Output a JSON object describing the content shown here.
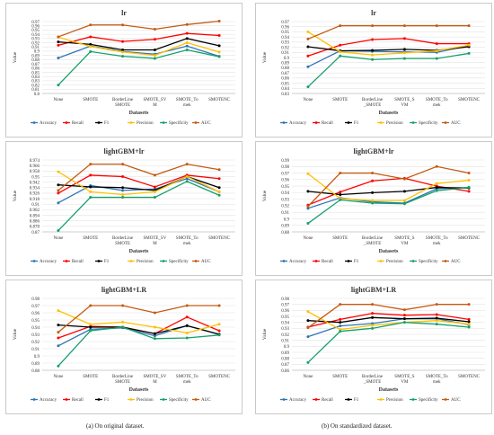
{
  "series_colors": {
    "Accuracy": "#2e75b6",
    "Recall": "#ff0000",
    "F1": "#000000",
    "Precision": "#ffc000",
    "Specificity": "#16a06a",
    "AUC": "#c55a11"
  },
  "captions": {
    "left": "(a)  On original dataset.",
    "right": "(b)  On standardized dataset."
  },
  "chart_data": [
    {
      "type": "line",
      "title": "lr",
      "xlabel": "Datasets",
      "ylabel": "Value",
      "ylim": [
        0.8,
        0.97
      ],
      "yticks": [
        "0.8",
        "0.81",
        "0.82",
        "0.83",
        "0.84",
        "0.85",
        "0.86",
        "0.87",
        "0.88",
        "0.89",
        "0.9",
        "0.91",
        "0.92",
        "0.93",
        "0.94",
        "0.95",
        "0.96",
        "0.97"
      ],
      "categories": [
        "None",
        "SMOTE",
        "BorderLine_SMOTE",
        "SMOTE_SVM",
        "SMOTE_Tomek",
        "SMOTENC"
      ],
      "category_labels": [
        [
          "None"
        ],
        [
          "SMOTE"
        ],
        [
          "BorderLine",
          "SMOTE"
        ],
        [
          "SMOTE_SV",
          "M"
        ],
        [
          "SMOTE_To",
          "mek"
        ],
        [
          "SMOTENC"
        ]
      ],
      "legend": "bottom",
      "grid": true,
      "series": [
        {
          "name": "Accuracy",
          "values": [
            0.884,
            0.912,
            0.899,
            0.893,
            0.912,
            0.888
          ]
        },
        {
          "name": "Recall",
          "values": [
            0.914,
            0.934,
            0.923,
            0.928,
            0.942,
            0.937
          ]
        },
        {
          "name": "F1",
          "values": [
            0.922,
            0.916,
            0.903,
            0.903,
            0.93,
            0.913
          ]
        },
        {
          "name": "Precision",
          "values": [
            0.933,
            0.911,
            0.898,
            0.89,
            0.92,
            0.898
          ]
        },
        {
          "name": "Specificity",
          "values": [
            0.82,
            0.899,
            0.888,
            0.883,
            0.903,
            0.887
          ]
        },
        {
          "name": "AUC",
          "values": [
            0.934,
            0.962,
            0.962,
            0.952,
            0.963,
            0.971
          ]
        }
      ]
    },
    {
      "type": "line",
      "title": "lr",
      "xlabel": "Datasets",
      "ylabel": "Value",
      "ylim": [
        0.83,
        0.97
      ],
      "yticks": [
        "0.83",
        "0.84",
        "0.85",
        "0.86",
        "0.87",
        "0.88",
        "0.89",
        "0.9",
        "0.91",
        "0.92",
        "0.93",
        "0.94",
        "0.95",
        "0.96",
        "0.97"
      ],
      "categories": [
        "None",
        "SMOTE",
        "BorderLine_SMOTE",
        "SMOTE_SVM",
        "SMOTE_Tomek",
        "SMOTENC"
      ],
      "category_labels": [
        [
          "None"
        ],
        [
          "SMOTE"
        ],
        [
          "BorderLine",
          "_SMOTE"
        ],
        [
          "SMOTE_S",
          "VM"
        ],
        [
          "SMOTE_To",
          "mek"
        ],
        [
          "SMOTENC"
        ]
      ],
      "legend": "bottom",
      "grid": true,
      "series": [
        {
          "name": "Accuracy",
          "values": [
            0.882,
            0.913,
            0.912,
            0.911,
            0.91,
            0.923
          ]
        },
        {
          "name": "Recall",
          "values": [
            0.903,
            0.924,
            0.935,
            0.937,
            0.927,
            0.927
          ]
        },
        {
          "name": "F1",
          "values": [
            0.921,
            0.913,
            0.914,
            0.916,
            0.914,
            0.921
          ]
        },
        {
          "name": "Precision",
          "values": [
            0.95,
            0.911,
            0.905,
            0.909,
            0.913,
            0.924
          ]
        },
        {
          "name": "Specificity",
          "values": [
            0.843,
            0.903,
            0.896,
            0.898,
            0.898,
            0.908
          ]
        },
        {
          "name": "AUC",
          "values": [
            0.936,
            0.962,
            0.962,
            0.962,
            0.962,
            0.962
          ]
        }
      ]
    },
    {
      "type": "line",
      "title": "lightGBM+lr",
      "xlabel": "Datasets",
      "ylabel": "Value",
      "ylim": [
        0.87,
        0.974
      ],
      "yticks": [
        "0.87",
        "0.878",
        "0.886",
        "0.894",
        "0.902",
        "0.91",
        "0.918",
        "0.926",
        "0.934",
        "0.942",
        "0.95",
        "0.958",
        "0.966",
        "0.974"
      ],
      "categories": [
        "None",
        "SMOTE",
        "BorderLine_SMOTE",
        "SMOTE_SVM",
        "SMOTE_Tomek",
        "SMOTENC"
      ],
      "category_labels": [
        [
          "None"
        ],
        [
          "SMOTE"
        ],
        [
          "BorderLine",
          "SMOTE"
        ],
        [
          "SMOTE_SV",
          "M"
        ],
        [
          "SMOTE_To",
          "mek"
        ],
        [
          "SMOTENC"
        ]
      ],
      "legend": "bottom",
      "grid": true,
      "series": [
        {
          "name": "Accuracy",
          "values": [
            0.912,
            0.937,
            0.93,
            0.932,
            0.947,
            0.928
          ]
        },
        {
          "name": "Recall",
          "values": [
            0.926,
            0.952,
            0.95,
            0.935,
            0.952,
            0.947
          ]
        },
        {
          "name": "F1",
          "values": [
            0.938,
            0.935,
            0.934,
            0.93,
            0.95,
            0.934
          ]
        },
        {
          "name": "Precision",
          "values": [
            0.957,
            0.928,
            0.924,
            0.928,
            0.95,
            0.928
          ]
        },
        {
          "name": "Specificity",
          "values": [
            0.872,
            0.92,
            0.92,
            0.92,
            0.943,
            0.923
          ]
        },
        {
          "name": "AUC",
          "values": [
            0.93,
            0.968,
            0.968,
            0.952,
            0.968,
            0.96
          ]
        }
      ]
    },
    {
      "type": "line",
      "title": "lightGBM+lr",
      "xlabel": "Datasets",
      "ylabel": "Value",
      "ylim": [
        0.88,
        0.99
      ],
      "yticks": [
        "0.88",
        "0.89",
        "0.9",
        "0.91",
        "0.92",
        "0.93",
        "0.94",
        "0.95",
        "0.96",
        "0.97",
        "0.98",
        "0.99"
      ],
      "categories": [
        "None",
        "SMOTE",
        "BorderLine_SMOTE",
        "SMOTE_SVM",
        "SMOTE_Tomek",
        "SMOTENC"
      ],
      "category_labels": [
        [
          "None"
        ],
        [
          "SMOTE"
        ],
        [
          "BorderLine",
          "_SMOTE"
        ],
        [
          "SMOTE_S",
          "VM"
        ],
        [
          "SMOTE_To",
          "mek"
        ],
        [
          "SMOTENC"
        ]
      ],
      "legend": "bottom",
      "grid": true,
      "series": [
        {
          "name": "Accuracy",
          "values": [
            0.916,
            0.932,
            0.926,
            0.924,
            0.946,
            0.948
          ]
        },
        {
          "name": "Recall",
          "values": [
            0.921,
            0.941,
            0.958,
            0.962,
            0.95,
            0.942
          ]
        },
        {
          "name": "F1",
          "values": [
            0.942,
            0.937,
            0.94,
            0.942,
            0.948,
            0.947
          ]
        },
        {
          "name": "Precision",
          "values": [
            0.969,
            0.931,
            0.928,
            0.928,
            0.954,
            0.959
          ]
        },
        {
          "name": "Specificity",
          "values": [
            0.893,
            0.929,
            0.924,
            0.923,
            0.943,
            0.948
          ]
        },
        {
          "name": "AUC",
          "values": [
            0.919,
            0.97,
            0.97,
            0.961,
            0.98,
            0.97
          ]
        }
      ]
    },
    {
      "type": "line",
      "title": "lightGBM+LR",
      "xlabel": "Datasets",
      "ylabel": "Value",
      "ylim": [
        0.88,
        0.98
      ],
      "yticks": [
        "0.88",
        "0.89",
        "0.9",
        "0.91",
        "0.92",
        "0.93",
        "0.94",
        "0.95",
        "0.96",
        "0.97",
        "0.98"
      ],
      "categories": [
        "None",
        "SMOTE",
        "BorderLine_SMOTE",
        "SMOTE_SVM",
        "SMOTE_Tomek",
        "SMOTENC"
      ],
      "category_labels": [
        [
          "None"
        ],
        [
          "SMOTE"
        ],
        [
          "BorderLine",
          "SMOTE"
        ],
        [
          "SMOTE_SV",
          "M"
        ],
        [
          "SMOTE_To",
          "mek"
        ],
        [
          "SMOTENC"
        ]
      ],
      "legend": "bottom",
      "grid": true,
      "series": [
        {
          "name": "Accuracy",
          "values": [
            0.914,
            0.937,
            0.939,
            0.928,
            0.942,
            0.93
          ]
        },
        {
          "name": "Recall",
          "values": [
            0.925,
            0.941,
            0.94,
            0.931,
            0.954,
            0.935
          ]
        },
        {
          "name": "F1",
          "values": [
            0.943,
            0.94,
            0.94,
            0.931,
            0.942,
            0.93
          ]
        },
        {
          "name": "Precision",
          "values": [
            0.963,
            0.944,
            0.947,
            0.94,
            0.932,
            0.944
          ]
        },
        {
          "name": "Specificity",
          "values": [
            0.886,
            0.935,
            0.94,
            0.924,
            0.925,
            0.929
          ]
        },
        {
          "name": "AUC",
          "values": [
            0.933,
            0.97,
            0.97,
            0.96,
            0.97,
            0.97
          ]
        }
      ]
    },
    {
      "type": "line",
      "title": "lightGBM+LR",
      "xlabel": "Datasets",
      "ylabel": "Value",
      "ylim": [
        0.86,
        0.98
      ],
      "yticks": [
        "0.86",
        "0.87",
        "0.88",
        "0.89",
        "0.9",
        "0.91",
        "0.92",
        "0.93",
        "0.94",
        "0.95",
        "0.96",
        "0.97",
        "0.98"
      ],
      "categories": [
        "None",
        "SMOTE",
        "BorderLine_SMOTE",
        "SMOTE_SVM",
        "SMOTE_Tomek",
        "SMOTENC"
      ],
      "category_labels": [
        [
          "None"
        ],
        [
          "SMOTE"
        ],
        [
          "BorderLine",
          "_SMOTE"
        ],
        [
          "SMOTE_S",
          "VM"
        ],
        [
          "SMOTE_To",
          "mek"
        ],
        [
          "SMOTENC"
        ]
      ],
      "legend": "bottom",
      "grid": true,
      "series": [
        {
          "name": "Accuracy",
          "values": [
            0.916,
            0.934,
            0.938,
            0.946,
            0.946,
            0.936
          ]
        },
        {
          "name": "Recall",
          "values": [
            0.932,
            0.945,
            0.955,
            0.952,
            0.953,
            0.945
          ]
        },
        {
          "name": "F1",
          "values": [
            0.943,
            0.94,
            0.948,
            0.946,
            0.947,
            0.941
          ]
        },
        {
          "name": "Precision",
          "values": [
            0.958,
            0.928,
            0.935,
            0.94,
            0.943,
            0.937
          ]
        },
        {
          "name": "Specificity",
          "values": [
            0.873,
            0.925,
            0.93,
            0.94,
            0.937,
            0.932
          ]
        },
        {
          "name": "AUC",
          "values": [
            0.931,
            0.97,
            0.97,
            0.961,
            0.97,
            0.97
          ]
        }
      ]
    }
  ]
}
